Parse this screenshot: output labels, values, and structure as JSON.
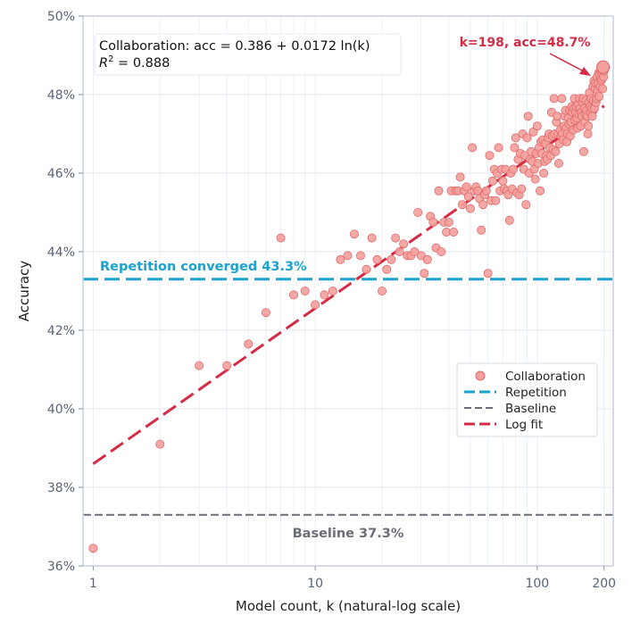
{
  "chart_data": {
    "type": "scatter",
    "xscale": "log",
    "xlabel": "Model count, k (natural-log scale)",
    "ylabel": "Accuracy",
    "xlim": [
      0.9,
      220
    ],
    "ylim": [
      36,
      50
    ],
    "x_ticks": [
      1,
      10,
      100,
      200
    ],
    "x_tick_labels": [
      "1",
      "10",
      "100",
      "200"
    ],
    "y_ticks": [
      36,
      38,
      40,
      42,
      44,
      46,
      48,
      50
    ],
    "y_tick_labels": [
      "36%",
      "38%",
      "40%",
      "42%",
      "44%",
      "46%",
      "48%",
      "50%"
    ],
    "grid": true,
    "legend_position": "center-right",
    "colors": {
      "collaboration": "#f4a09c",
      "collaboration_edge": "#e06a6a",
      "repetition": "#1aa3cf",
      "baseline": "#6b6e78",
      "fit": "#d62b44",
      "grid": "#e6ecf6",
      "frame": "#c9d1e0"
    },
    "series": [
      {
        "name": "Collaboration",
        "kind": "scatter",
        "points": [
          [
            1,
            36.45
          ],
          [
            2,
            39.1
          ],
          [
            3,
            41.1
          ],
          [
            4,
            41.1
          ],
          [
            5,
            41.65
          ],
          [
            6,
            42.45
          ],
          [
            7,
            44.35
          ],
          [
            8,
            42.9
          ],
          [
            9,
            43.0
          ],
          [
            10,
            42.65
          ],
          [
            11,
            42.9
          ],
          [
            12,
            43.0
          ],
          [
            13,
            43.8
          ],
          [
            14,
            43.9
          ],
          [
            15,
            44.45
          ],
          [
            16,
            43.9
          ],
          [
            17,
            43.55
          ],
          [
            18,
            44.35
          ],
          [
            19,
            43.8
          ],
          [
            20,
            43.0
          ],
          [
            21,
            43.55
          ],
          [
            22,
            43.8
          ],
          [
            23,
            44.35
          ],
          [
            24,
            44.0
          ],
          [
            25,
            44.2
          ],
          [
            26,
            43.9
          ],
          [
            27,
            43.9
          ],
          [
            28,
            44.0
          ],
          [
            29,
            45.0
          ],
          [
            30,
            43.9
          ],
          [
            31,
            43.45
          ],
          [
            32,
            43.8
          ],
          [
            33,
            44.9
          ],
          [
            34,
            44.75
          ],
          [
            35,
            44.1
          ],
          [
            36,
            45.55
          ],
          [
            37,
            44.0
          ],
          [
            38,
            44.75
          ],
          [
            39,
            44.5
          ],
          [
            40,
            44.75
          ],
          [
            41,
            45.55
          ],
          [
            42,
            44.5
          ],
          [
            43,
            45.55
          ],
          [
            44,
            45.55
          ],
          [
            45,
            45.9
          ],
          [
            46,
            45.2
          ],
          [
            47,
            45.55
          ],
          [
            48,
            45.65
          ],
          [
            49,
            45.4
          ],
          [
            50,
            45.1
          ],
          [
            51,
            46.65
          ],
          [
            52,
            45.55
          ],
          [
            53,
            45.65
          ],
          [
            54,
            45.55
          ],
          [
            55,
            45.35
          ],
          [
            56,
            44.55
          ],
          [
            57,
            45.2
          ],
          [
            58,
            45.45
          ],
          [
            59,
            45.55
          ],
          [
            60,
            43.45
          ],
          [
            61,
            46.45
          ],
          [
            62,
            45.3
          ],
          [
            63,
            45.8
          ],
          [
            64,
            46.1
          ],
          [
            65,
            45.3
          ],
          [
            66,
            46.0
          ],
          [
            67,
            46.65
          ],
          [
            68,
            45.55
          ],
          [
            69,
            46.1
          ],
          [
            70,
            45.8
          ],
          [
            71,
            45.6
          ],
          [
            72,
            46.1
          ],
          [
            73,
            45.55
          ],
          [
            74,
            45.45
          ],
          [
            75,
            44.8
          ],
          [
            76,
            46.0
          ],
          [
            77,
            45.6
          ],
          [
            78,
            46.1
          ],
          [
            79,
            46.65
          ],
          [
            80,
            46.9
          ],
          [
            81,
            45.5
          ],
          [
            82,
            46.35
          ],
          [
            83,
            45.45
          ],
          [
            84,
            46.5
          ],
          [
            85,
            45.6
          ],
          [
            86,
            47.0
          ],
          [
            87,
            46.1
          ],
          [
            88,
            46.45
          ],
          [
            89,
            45.2
          ],
          [
            90,
            46.9
          ],
          [
            91,
            47.45
          ],
          [
            92,
            46.0
          ],
          [
            93,
            46.35
          ],
          [
            94,
            46.55
          ],
          [
            95,
            46.3
          ],
          [
            96,
            47.05
          ],
          [
            97,
            46.1
          ],
          [
            98,
            45.85
          ],
          [
            99,
            46.5
          ],
          [
            100,
            47.2
          ],
          [
            101,
            46.25
          ],
          [
            102,
            46.65
          ],
          [
            103,
            45.55
          ],
          [
            104,
            46.8
          ],
          [
            105,
            46.5
          ],
          [
            106,
            46.85
          ],
          [
            107,
            46.0
          ],
          [
            108,
            46.3
          ],
          [
            109,
            46.75
          ],
          [
            110,
            46.45
          ],
          [
            111,
            46.35
          ],
          [
            112,
            46.9
          ],
          [
            113,
            47.0
          ],
          [
            114,
            46.65
          ],
          [
            115,
            46.45
          ],
          [
            116,
            47.55
          ],
          [
            117,
            46.95
          ],
          [
            118,
            46.6
          ],
          [
            119,
            47.9
          ],
          [
            120,
            47.0
          ],
          [
            121,
            46.55
          ],
          [
            122,
            47.3
          ],
          [
            123,
            47.45
          ],
          [
            124,
            47.0
          ],
          [
            125,
            46.25
          ],
          [
            126,
            46.75
          ],
          [
            127,
            47.1
          ],
          [
            128,
            46.95
          ],
          [
            129,
            47.9
          ],
          [
            130,
            47.0
          ],
          [
            131,
            46.85
          ],
          [
            132,
            47.2
          ],
          [
            133,
            47.45
          ],
          [
            134,
            47.6
          ],
          [
            135,
            47.15
          ],
          [
            136,
            46.8
          ],
          [
            137,
            47.0
          ],
          [
            138,
            47.4
          ],
          [
            139,
            47.25
          ],
          [
            140,
            47.6
          ],
          [
            141,
            46.95
          ],
          [
            142,
            47.3
          ],
          [
            143,
            47.7
          ],
          [
            144,
            47.55
          ],
          [
            145,
            47.1
          ],
          [
            146,
            47.65
          ],
          [
            147,
            47.9
          ],
          [
            148,
            47.35
          ],
          [
            149,
            47.55
          ],
          [
            150,
            47.7
          ],
          [
            151,
            47.4
          ],
          [
            152,
            47.15
          ],
          [
            153,
            47.75
          ],
          [
            154,
            47.5
          ],
          [
            155,
            47.9
          ],
          [
            156,
            47.65
          ],
          [
            157,
            47.2
          ],
          [
            158,
            47.55
          ],
          [
            159,
            47.45
          ],
          [
            160,
            47.8
          ],
          [
            161,
            47.9
          ],
          [
            162,
            46.55
          ],
          [
            163,
            47.65
          ],
          [
            164,
            47.3
          ],
          [
            165,
            47.5
          ],
          [
            166,
            47.85
          ],
          [
            167,
            47.6
          ],
          [
            168,
            47.45
          ],
          [
            169,
            47.0
          ],
          [
            170,
            47.2
          ],
          [
            171,
            47.8
          ],
          [
            172,
            48.05
          ],
          [
            173,
            47.7
          ],
          [
            174,
            47.55
          ],
          [
            175,
            47.9
          ],
          [
            176,
            47.65
          ],
          [
            177,
            47.45
          ],
          [
            178,
            48.2
          ],
          [
            179,
            47.85
          ],
          [
            180,
            48.35
          ],
          [
            181,
            47.65
          ],
          [
            182,
            48.15
          ],
          [
            183,
            48.3
          ],
          [
            184,
            47.8
          ],
          [
            185,
            47.9
          ],
          [
            186,
            48.45
          ],
          [
            187,
            48.1
          ],
          [
            188,
            48.3
          ],
          [
            189,
            48.55
          ],
          [
            190,
            47.95
          ],
          [
            191,
            48.5
          ],
          [
            192,
            48.2
          ],
          [
            193,
            48.6
          ],
          [
            194,
            48.35
          ],
          [
            195,
            48.4
          ],
          [
            196,
            48.55
          ],
          [
            197,
            48.15
          ],
          [
            199,
            48.45
          ],
          [
            200,
            48.6
          ]
        ]
      },
      {
        "name": "Repetition",
        "kind": "hline",
        "y": 43.3
      },
      {
        "name": "Baseline",
        "kind": "hline",
        "y": 37.3
      },
      {
        "name": "Log fit",
        "kind": "fit",
        "a": 0.386,
        "b": 0.0172,
        "x_range": [
          1,
          200
        ]
      }
    ],
    "highlight": {
      "x": 198,
      "y": 48.7,
      "label": "k=198, acc=48.7%"
    },
    "annotations": {
      "fit_equation": "Collaboration: acc = 0.386 + 0.0172 ln(k)",
      "r2_label": "R",
      "r2_value": " = 0.888",
      "repetition_label": "Repetition converged 43.3%",
      "baseline_label": "Baseline 37.3%"
    }
  }
}
